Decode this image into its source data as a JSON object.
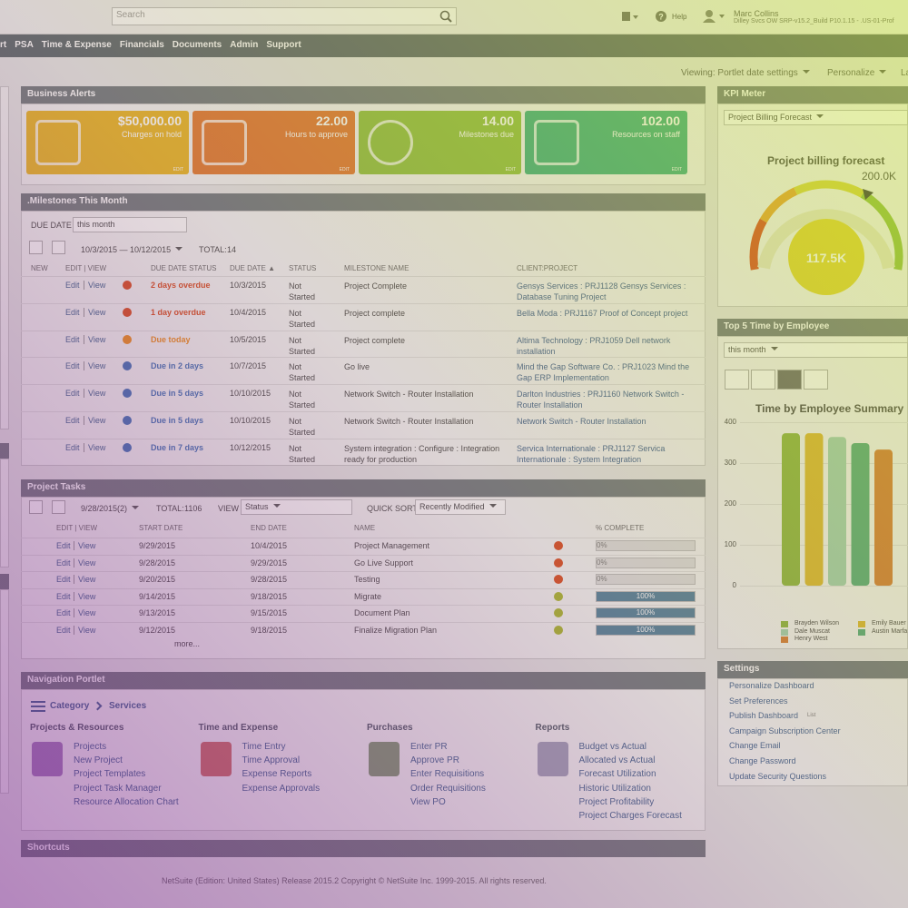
{
  "header": {
    "search_placeholder": "Search",
    "help": "Help",
    "user_name": "Marc Collins",
    "account": "Dilley Svcs OW SRP-v15.2_Build P10.1.15 - .US-01-Prof"
  },
  "menu": [
    "rt",
    "PSA",
    "Time & Expense",
    "Financials",
    "Documents",
    "Admin",
    "Support"
  ],
  "toolbar": {
    "viewing": "Viewing: Portlet date settings",
    "personalize": "Personalize",
    "layout": "La"
  },
  "business_alerts": {
    "title": "Business Alerts",
    "edit": "EDIT",
    "tiles": [
      {
        "value": "$50,000.00",
        "label": "Charges on hold",
        "color": "#e9b420"
      },
      {
        "value": "22.00",
        "label": "Hours to approve",
        "color": "#e2762c"
      },
      {
        "value": "14.00",
        "label": "Milestones due",
        "color": "#8fbf3b"
      },
      {
        "value": "102.00",
        "label": "Resources on staff",
        "color": "#3aae7b"
      }
    ]
  },
  "milestones": {
    "title": ".Milestones This Month",
    "filter_label": "DUE DATE",
    "filter_value": "this month",
    "range": "10/3/2015 — 10/12/2015",
    "total_label": "TOTAL:",
    "total": "14",
    "edit_label": "Edit",
    "view_label": "View",
    "columns": [
      "NEW",
      "EDIT | VIEW",
      "DUE DATE STATUS",
      "DUE DATE ▲",
      "STATUS",
      "MILESTONE NAME",
      "CLIENT:PROJECT"
    ],
    "rows": [
      {
        "due_status": "2 days overdue",
        "color": "#d9481c",
        "due_date": "10/3/2015",
        "status": "Not Started",
        "name": "Project Complete",
        "client": "Gensys Services : PRJ1128 Gensys Services : Database Tuning Project"
      },
      {
        "due_status": "1 day overdue",
        "color": "#d9481c",
        "due_date": "10/4/2015",
        "status": "Not Started",
        "name": "Project complete",
        "client": "Bella Moda : PRJ1167 Proof of Concept project"
      },
      {
        "due_status": "Due today",
        "color": "#ee8a1a",
        "due_date": "10/5/2015",
        "status": "Not Started",
        "name": "Project complete",
        "client": "Altima Technology : PRJ1059 Dell network installation"
      },
      {
        "due_status": "Due in 2 days",
        "color": "#3f6fb5",
        "due_date": "10/7/2015",
        "status": "Not Started",
        "name": "Go live",
        "client": "Mind the Gap Software Co. : PRJ1023 Mind the Gap ERP Implementation"
      },
      {
        "due_status": "Due in 5 days",
        "color": "#3f6fb5",
        "due_date": "10/10/2015",
        "status": "Not Started",
        "name": "Network Switch - Router Installation",
        "client": "Darlton Industries : PRJ1160 Network Switch - Router Installation"
      },
      {
        "due_status": "Due in 5 days",
        "color": "#3f6fb5",
        "due_date": "10/10/2015",
        "status": "Not Started",
        "name": "Network Switch - Router Installation",
        "client": "Network Switch - Router Installation"
      },
      {
        "due_status": "Due in 7 days",
        "color": "#3f6fb5",
        "due_date": "10/12/2015",
        "status": "Not Started",
        "name": "System integration : Configure : Integration ready for production",
        "client": "Servica Internationale : PRJ1127 Servica Internationale : System Integration"
      }
    ]
  },
  "project_tasks": {
    "title": "Project Tasks",
    "date": "9/28/2015(2)",
    "total_label": "TOTAL:",
    "total": "1106",
    "view_label": "VIEW",
    "view_value": "Status",
    "sort_label": "QUICK SORT",
    "sort_value": "Recently Modified",
    "edit_label": "Edit",
    "view_link": "View",
    "more": "more...",
    "columns": [
      "EDIT | VIEW",
      "START DATE",
      "END DATE",
      "NAME",
      "% COMPLETE"
    ],
    "rows": [
      {
        "start": "9/29/2015",
        "end": "10/4/2015",
        "name": "Project Management",
        "color": "#d9481c",
        "complete": 0,
        "complete_label": "0%"
      },
      {
        "start": "9/28/2015",
        "end": "9/29/2015",
        "name": "Go Live Support",
        "color": "#d9481c",
        "complete": 0,
        "complete_label": "0%"
      },
      {
        "start": "9/20/2015",
        "end": "9/28/2015",
        "name": "Testing",
        "color": "#d9481c",
        "complete": 0,
        "complete_label": "0%"
      },
      {
        "start": "9/14/2015",
        "end": "9/18/2015",
        "name": "Migrate",
        "color": "#a8b52a",
        "complete": 100,
        "complete_label": "100%"
      },
      {
        "start": "9/13/2015",
        "end": "9/15/2015",
        "name": "Document Plan",
        "color": "#a8b52a",
        "complete": 100,
        "complete_label": "100%"
      },
      {
        "start": "9/12/2015",
        "end": "9/18/2015",
        "name": "Finalize Migration Plan",
        "color": "#a8b52a",
        "complete": 100,
        "complete_label": "100%"
      }
    ]
  },
  "navigation": {
    "title": "Navigation Portlet",
    "breadcrumb": [
      "Category",
      "Services"
    ],
    "columns": [
      {
        "heading": "Projects & Resources",
        "links": [
          "Projects",
          "New Project",
          "Project Templates",
          "Project Task Manager",
          "Resource Allocation Chart"
        ]
      },
      {
        "heading": "Time and Expense",
        "links": [
          "Time Entry",
          "Time Approval",
          "Expense Reports",
          "Expense Approvals"
        ]
      },
      {
        "heading": "Purchases",
        "links": [
          "Enter PR",
          "Approve PR",
          "Enter Requisitions",
          "Order Requisitions",
          "View PO"
        ]
      },
      {
        "heading": "Reports",
        "links": [
          "Budget vs Actual",
          "Allocated vs Actual",
          "Forecast Utilization",
          "Historic Utilization",
          "Project Profitability",
          "Project Charges Forecast"
        ]
      }
    ]
  },
  "shortcuts": {
    "title": "Shortcuts"
  },
  "footer": "NetSuite (Edition: United States) Release 2015.2 Copyright © NetSuite Inc. 1999-2015. All rights reserved.",
  "kpi_meter": {
    "title": "KPI Meter",
    "select": "Project Billing Forecast",
    "gauge_title": "Project billing forecast",
    "target_label": "200.0K",
    "value_label": "117.5K"
  },
  "top5": {
    "title": "Top 5 Time by Employee",
    "period": "this month",
    "chart": {
      "type": "bar",
      "title": "Time by Employee Summary",
      "ylim": [
        0,
        400
      ],
      "yticks": [
        0,
        100,
        200,
        300,
        400
      ],
      "series": [
        {
          "name": "Brayden Wilson",
          "color": "#8ab33a",
          "values": [
            373
          ]
        },
        {
          "name": "Emily Bauer",
          "color": "#dcb62a",
          "values": [
            373
          ]
        },
        {
          "name": "Dale Muscat",
          "color": "#9fcfae",
          "values": [
            364
          ]
        },
        {
          "name": "Austin Marfa",
          "color": "#4fa876",
          "values": [
            349
          ]
        },
        {
          "name": "Henry West",
          "color": "#d4782e",
          "values": [
            333
          ]
        }
      ]
    }
  },
  "settings": {
    "title": "Settings",
    "links": [
      "Personalize Dashboard",
      "Set Preferences",
      "Publish Dashboard",
      "Campaign Subscription Center",
      "Change Email",
      "Change Password",
      "Update Security Questions"
    ],
    "publish_tag": "List"
  }
}
